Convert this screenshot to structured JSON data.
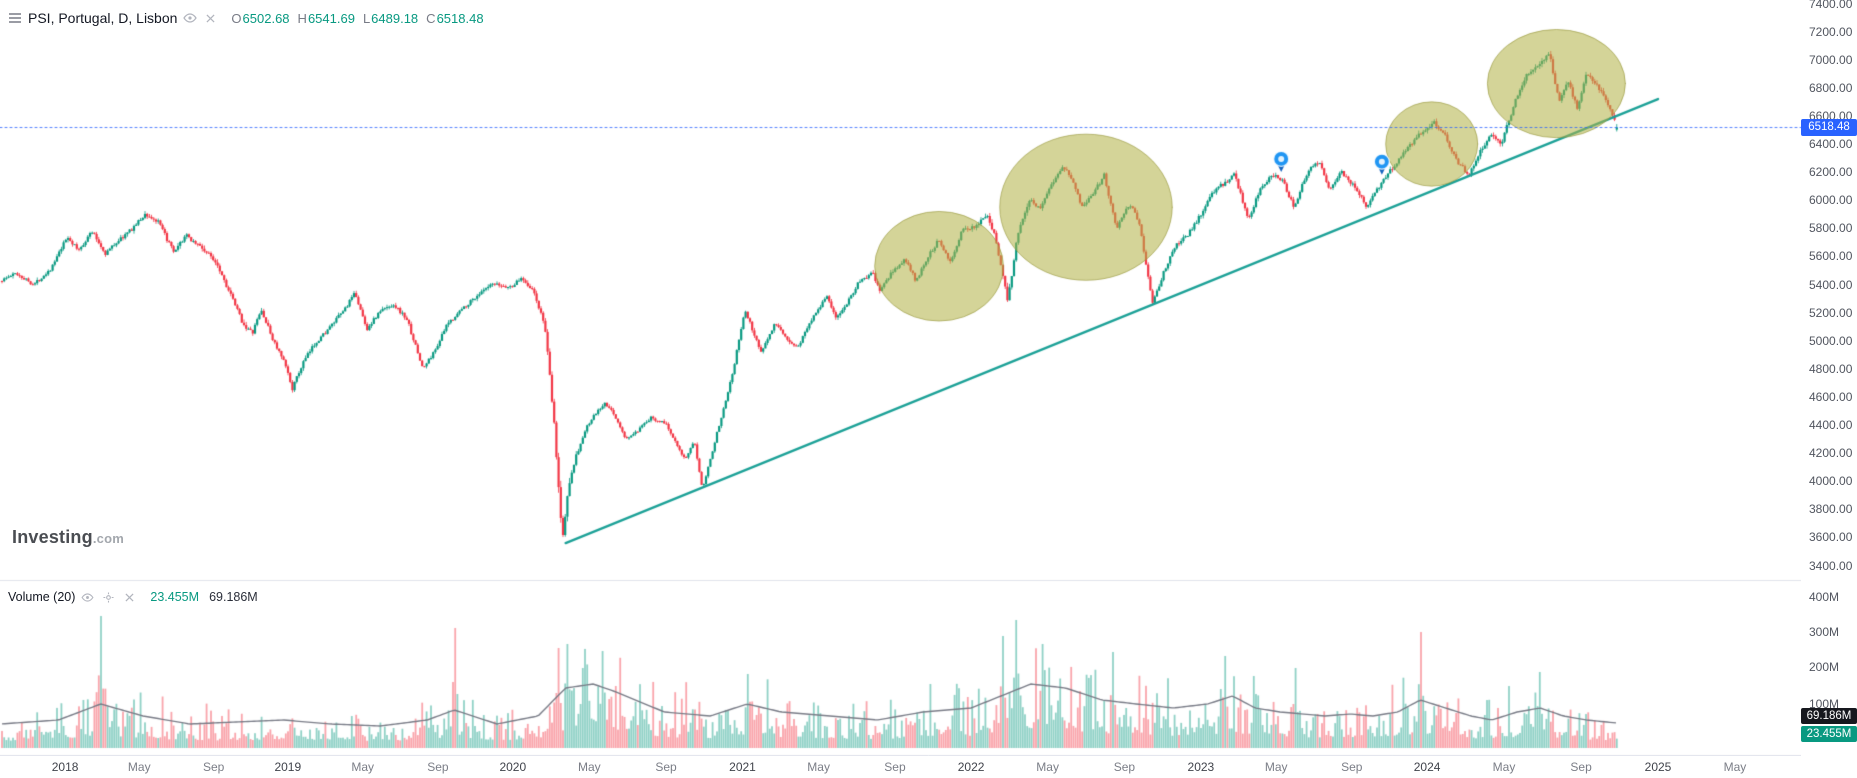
{
  "header": {
    "title": "PSI, Portugal, D, Lisbon",
    "ohlc": [
      {
        "label": "O",
        "value": "6502.68"
      },
      {
        "label": "H",
        "value": "6541.69"
      },
      {
        "label": "L",
        "value": "6489.18"
      },
      {
        "label": "C",
        "value": "6518.48"
      }
    ]
  },
  "volume_legend": {
    "label": "Volume (20)",
    "current": "23.455M",
    "ma": "69.186M"
  },
  "watermark": {
    "brand": "Investing",
    "suffix": ".com"
  },
  "price_axis": {
    "labels": [
      "7400.00",
      "7200.00",
      "7000.00",
      "6800.00",
      "6600.00",
      "6400.00",
      "6200.00",
      "6000.00",
      "5800.00",
      "5600.00",
      "5400.00",
      "5200.00",
      "5000.00",
      "4800.00",
      "4600.00",
      "4400.00",
      "4200.00",
      "4000.00",
      "3800.00",
      "3600.00",
      "3400.00"
    ],
    "last_price_badge": "6518.48"
  },
  "volume_axis": {
    "labels": [
      "400M",
      "300M",
      "200M",
      "100M"
    ],
    "ma_badge": "69.186M",
    "current_badge": "23.455M"
  },
  "time_axis": {
    "ticks": [
      {
        "label": "2018",
        "t": 2018.0,
        "major": true
      },
      {
        "label": "May",
        "t": 2018.333
      },
      {
        "label": "Sep",
        "t": 2018.667
      },
      {
        "label": "2019",
        "t": 2019.0,
        "major": true
      },
      {
        "label": "May",
        "t": 2019.333
      },
      {
        "label": "Sep",
        "t": 2019.667
      },
      {
        "label": "2020",
        "t": 2020.0,
        "major": true
      },
      {
        "label": "May",
        "t": 2020.333
      },
      {
        "label": "Sep",
        "t": 2020.667
      },
      {
        "label": "2021",
        "t": 2021.0,
        "major": true
      },
      {
        "label": "May",
        "t": 2021.333
      },
      {
        "label": "Sep",
        "t": 2021.667
      },
      {
        "label": "2022",
        "t": 2022.0,
        "major": true
      },
      {
        "label": "May",
        "t": 2022.333
      },
      {
        "label": "Sep",
        "t": 2022.667
      },
      {
        "label": "2023",
        "t": 2023.0,
        "major": true
      },
      {
        "label": "May",
        "t": 2023.333
      },
      {
        "label": "Sep",
        "t": 2023.667
      },
      {
        "label": "2024",
        "t": 2024.0,
        "major": true
      },
      {
        "label": "May",
        "t": 2024.333
      },
      {
        "label": "Sep",
        "t": 2024.667
      },
      {
        "label": "2025",
        "t": 2025.0,
        "major": true
      },
      {
        "label": "May",
        "t": 2025.333
      }
    ]
  },
  "colors": {
    "up": "#089981",
    "down": "#f23645",
    "volume_up": "rgba(8,153,129,0.45)",
    "volume_down": "rgba(242,54,69,0.45)",
    "volume_ma_line": "#787b86",
    "accent_blue": "#2962ff",
    "trendline": "#1ca197",
    "highlight_fill": "rgba(177,177,68,0.55)",
    "highlight_stroke": "rgba(146,146,52,0.6)",
    "pin_blue": "#2196f3",
    "badge_dark": "#16181e",
    "badge_green": "#089981"
  },
  "chart_data": {
    "type": "candlestick",
    "symbol": "PSI",
    "market": "Portugal",
    "interval": "D",
    "exchange": "Lisbon",
    "last": {
      "open": 6502.68,
      "high": 6541.69,
      "low": 6489.18,
      "close": 6518.48
    },
    "ylim": [
      3400,
      7400
    ],
    "y_tick_step": 200,
    "x_range_years": [
      2017.7,
      2025.4
    ],
    "price_path": [
      [
        2017.71,
        5420
      ],
      [
        2017.79,
        5480
      ],
      [
        2017.87,
        5400
      ],
      [
        2017.95,
        5520
      ],
      [
        2018.02,
        5740
      ],
      [
        2018.07,
        5640
      ],
      [
        2018.13,
        5780
      ],
      [
        2018.19,
        5620
      ],
      [
        2018.24,
        5700
      ],
      [
        2018.3,
        5780
      ],
      [
        2018.37,
        5900
      ],
      [
        2018.43,
        5840
      ],
      [
        2018.5,
        5620
      ],
      [
        2018.55,
        5750
      ],
      [
        2018.61,
        5680
      ],
      [
        2018.69,
        5560
      ],
      [
        2018.76,
        5300
      ],
      [
        2018.81,
        5120
      ],
      [
        2018.85,
        5050
      ],
      [
        2018.89,
        5220
      ],
      [
        2018.94,
        5020
      ],
      [
        2019.0,
        4820
      ],
      [
        2019.03,
        4660
      ],
      [
        2019.08,
        4850
      ],
      [
        2019.13,
        4980
      ],
      [
        2019.2,
        5100
      ],
      [
        2019.26,
        5220
      ],
      [
        2019.31,
        5340
      ],
      [
        2019.36,
        5080
      ],
      [
        2019.42,
        5210
      ],
      [
        2019.48,
        5260
      ],
      [
        2019.54,
        5150
      ],
      [
        2019.61,
        4800
      ],
      [
        2019.66,
        4920
      ],
      [
        2019.72,
        5120
      ],
      [
        2019.78,
        5220
      ],
      [
        2019.85,
        5320
      ],
      [
        2019.92,
        5400
      ],
      [
        2020.0,
        5380
      ],
      [
        2020.05,
        5450
      ],
      [
        2020.1,
        5350
      ],
      [
        2020.15,
        5100
      ],
      [
        2020.19,
        4400
      ],
      [
        2020.225,
        3580
      ],
      [
        2020.26,
        4050
      ],
      [
        2020.29,
        4200
      ],
      [
        2020.33,
        4380
      ],
      [
        2020.37,
        4480
      ],
      [
        2020.41,
        4550
      ],
      [
        2020.45,
        4480
      ],
      [
        2020.5,
        4300
      ],
      [
        2020.55,
        4350
      ],
      [
        2020.61,
        4450
      ],
      [
        2020.67,
        4420
      ],
      [
        2020.72,
        4280
      ],
      [
        2020.76,
        4150
      ],
      [
        2020.8,
        4280
      ],
      [
        2020.835,
        3950
      ],
      [
        2020.86,
        4100
      ],
      [
        2020.9,
        4350
      ],
      [
        2020.94,
        4600
      ],
      [
        2020.97,
        4800
      ],
      [
        2021.02,
        5220
      ],
      [
        2021.06,
        5050
      ],
      [
        2021.09,
        4920
      ],
      [
        2021.15,
        5120
      ],
      [
        2021.2,
        5020
      ],
      [
        2021.25,
        4950
      ],
      [
        2021.32,
        5180
      ],
      [
        2021.38,
        5320
      ],
      [
        2021.42,
        5150
      ],
      [
        2021.47,
        5280
      ],
      [
        2021.52,
        5420
      ],
      [
        2021.58,
        5480
      ],
      [
        2021.61,
        5350
      ],
      [
        2021.66,
        5480
      ],
      [
        2021.72,
        5580
      ],
      [
        2021.77,
        5420
      ],
      [
        2021.82,
        5600
      ],
      [
        2021.87,
        5720
      ],
      [
        2021.92,
        5560
      ],
      [
        2021.97,
        5780
      ],
      [
        2022.03,
        5820
      ],
      [
        2022.08,
        5900
      ],
      [
        2022.12,
        5700
      ],
      [
        2022.17,
        5280
      ],
      [
        2022.21,
        5750
      ],
      [
        2022.26,
        6000
      ],
      [
        2022.31,
        5950
      ],
      [
        2022.36,
        6120
      ],
      [
        2022.41,
        6250
      ],
      [
        2022.45,
        6150
      ],
      [
        2022.49,
        5950
      ],
      [
        2022.54,
        6050
      ],
      [
        2022.59,
        6180
      ],
      [
        2022.64,
        5800
      ],
      [
        2022.7,
        5980
      ],
      [
        2022.74,
        5850
      ],
      [
        2022.8,
        5260
      ],
      [
        2022.85,
        5500
      ],
      [
        2022.9,
        5680
      ],
      [
        2022.95,
        5750
      ],
      [
        2023.01,
        5900
      ],
      [
        2023.06,
        6050
      ],
      [
        2023.11,
        6120
      ],
      [
        2023.16,
        6180
      ],
      [
        2023.22,
        5850
      ],
      [
        2023.27,
        6080
      ],
      [
        2023.33,
        6180
      ],
      [
        2023.37,
        6150
      ],
      [
        2023.42,
        5950
      ],
      [
        2023.48,
        6200
      ],
      [
        2023.53,
        6280
      ],
      [
        2023.58,
        6080
      ],
      [
        2023.63,
        6200
      ],
      [
        2023.69,
        6100
      ],
      [
        2023.74,
        5960
      ],
      [
        2023.78,
        6050
      ],
      [
        2023.83,
        6180
      ],
      [
        2023.88,
        6280
      ],
      [
        2023.93,
        6380
      ],
      [
        2023.98,
        6480
      ],
      [
        2024.04,
        6560
      ],
      [
        2024.09,
        6450
      ],
      [
        2024.14,
        6280
      ],
      [
        2024.19,
        6180
      ],
      [
        2024.24,
        6350
      ],
      [
        2024.29,
        6480
      ],
      [
        2024.33,
        6400
      ],
      [
        2024.39,
        6700
      ],
      [
        2024.44,
        6900
      ],
      [
        2024.49,
        6950
      ],
      [
        2024.54,
        7050
      ],
      [
        2024.58,
        6700
      ],
      [
        2024.62,
        6850
      ],
      [
        2024.66,
        6650
      ],
      [
        2024.7,
        6900
      ],
      [
        2024.74,
        6820
      ],
      [
        2024.79,
        6700
      ],
      [
        2024.83,
        6518.48
      ]
    ],
    "trendline": {
      "from": [
        2020.23,
        3560
      ],
      "to": [
        2025.0,
        6720
      ]
    },
    "highlight_ellipses": [
      {
        "t": 2021.86,
        "price": 5530,
        "rt": 0.28,
        "rp": 390
      },
      {
        "t": 2022.5,
        "price": 5950,
        "rt": 0.375,
        "rp": 520
      },
      {
        "t": 2024.02,
        "price": 6400,
        "rt": 0.2,
        "rp": 300
      },
      {
        "t": 2024.56,
        "price": 6830,
        "rt": 0.3,
        "rp": 385
      }
    ],
    "pin_markers": [
      {
        "t": 2023.355,
        "price": 6230
      },
      {
        "t": 2023.8,
        "price": 6210
      }
    ],
    "volume": {
      "unit": "M",
      "ylim": [
        0,
        400
      ],
      "ma_period": 20,
      "current": 23.455,
      "ma_current": 69.186,
      "ma_path": [
        [
          2017.71,
          60
        ],
        [
          2017.97,
          70
        ],
        [
          2018.16,
          110
        ],
        [
          2018.35,
          80
        ],
        [
          2018.56,
          60
        ],
        [
          2018.77,
          65
        ],
        [
          2018.98,
          70
        ],
        [
          2019.19,
          60
        ],
        [
          2019.41,
          55
        ],
        [
          2019.62,
          70
        ],
        [
          2019.74,
          95
        ],
        [
          2019.93,
          60
        ],
        [
          2020.11,
          80
        ],
        [
          2020.23,
          150
        ],
        [
          2020.35,
          160
        ],
        [
          2020.45,
          140
        ],
        [
          2020.66,
          90
        ],
        [
          2020.86,
          80
        ],
        [
          2021.02,
          110
        ],
        [
          2021.17,
          90
        ],
        [
          2021.38,
          80
        ],
        [
          2021.59,
          70
        ],
        [
          2021.79,
          90
        ],
        [
          2022.0,
          100
        ],
        [
          2022.13,
          130
        ],
        [
          2022.26,
          160
        ],
        [
          2022.41,
          150
        ],
        [
          2022.57,
          120
        ],
        [
          2022.72,
          110
        ],
        [
          2022.88,
          100
        ],
        [
          2023.03,
          110
        ],
        [
          2023.14,
          130
        ],
        [
          2023.24,
          100
        ],
        [
          2023.35,
          90
        ],
        [
          2023.45,
          85
        ],
        [
          2023.55,
          80
        ],
        [
          2023.66,
          85
        ],
        [
          2023.76,
          80
        ],
        [
          2023.87,
          90
        ],
        [
          2023.97,
          120
        ],
        [
          2024.08,
          100
        ],
        [
          2024.19,
          80
        ],
        [
          2024.28,
          70
        ],
        [
          2024.39,
          90
        ],
        [
          2024.49,
          100
        ],
        [
          2024.59,
          80
        ],
        [
          2024.69,
          70
        ],
        [
          2024.83,
          62
        ]
      ],
      "spikes": [
        [
          2018.16,
          330,
          "up"
        ],
        [
          2019.74,
          300,
          "down"
        ],
        [
          2020.2,
          250,
          "down"
        ],
        [
          2020.24,
          260,
          "up"
        ],
        [
          2020.3,
          200,
          "up"
        ],
        [
          2021.02,
          185,
          "up"
        ],
        [
          2022.14,
          280,
          "up"
        ],
        [
          2022.2,
          320,
          "up"
        ],
        [
          2022.31,
          260,
          "up"
        ],
        [
          2022.62,
          240,
          "up"
        ],
        [
          2023.11,
          230,
          "up"
        ],
        [
          2023.42,
          200,
          "up"
        ],
        [
          2023.97,
          290,
          "down"
        ],
        [
          2024.49,
          190,
          "up"
        ]
      ]
    }
  }
}
